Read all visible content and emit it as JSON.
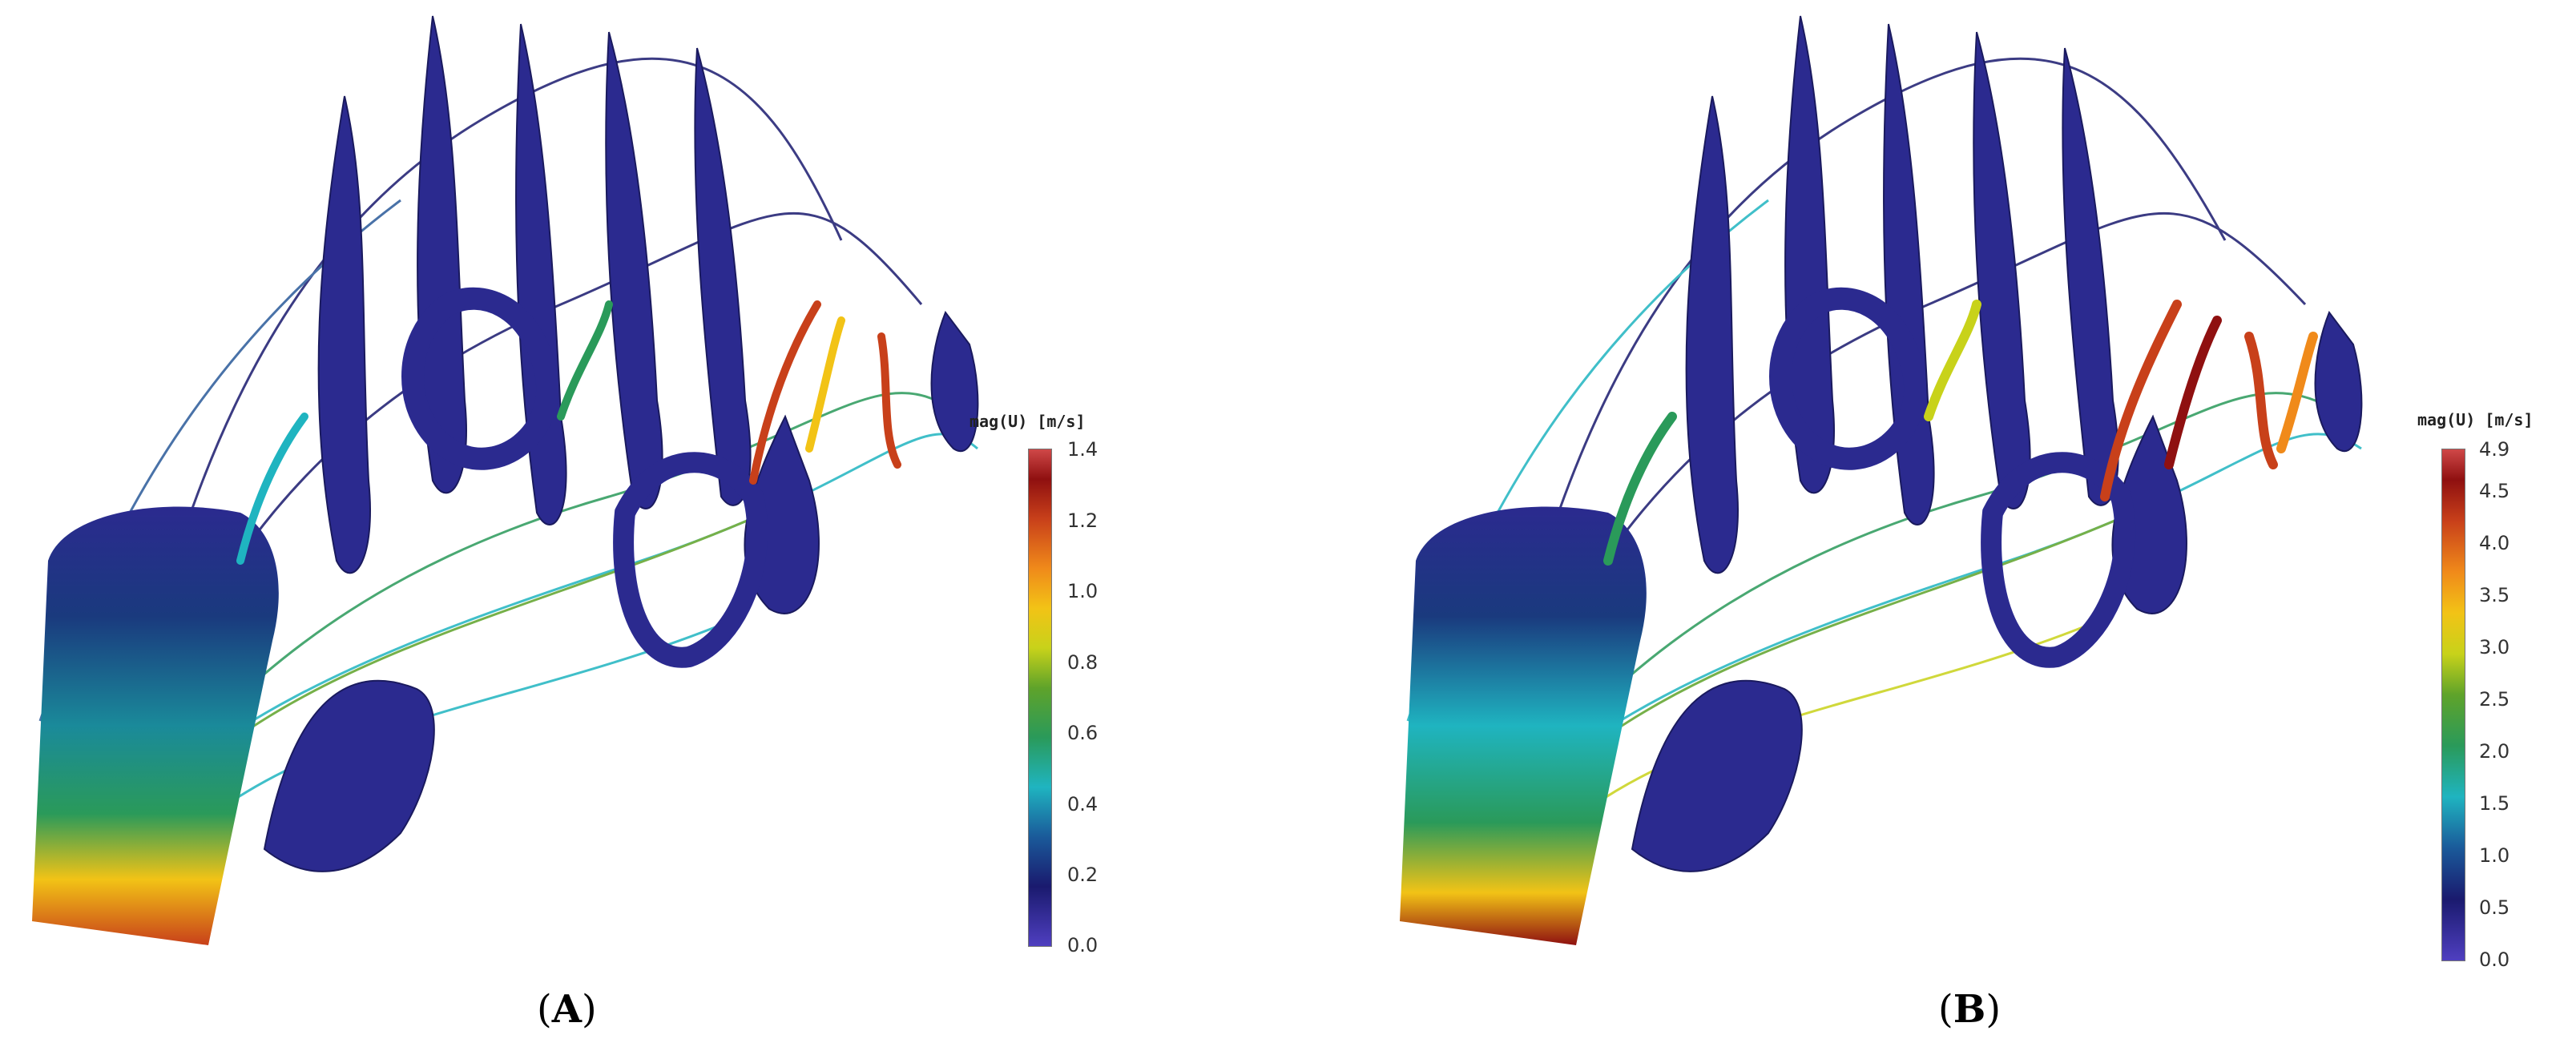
{
  "panels": [
    {
      "label_open": "(",
      "label_letter": "A",
      "label_close": ")",
      "colorbar": {
        "title": "mag(U) [m/s]",
        "ticks": [
          "1.4",
          "1.2",
          "1.0",
          "0.8",
          "0.6",
          "0.4",
          "0.2",
          "0.0"
        ]
      }
    },
    {
      "label_open": "(",
      "label_letter": "B",
      "label_close": ")",
      "colorbar": {
        "title": "mag(U) [m/s]",
        "ticks": [
          "4.9",
          "4.5",
          "4.0",
          "3.5",
          "3.0",
          "2.5",
          "2.0",
          "1.5",
          "1.0",
          "0.5",
          "0.0"
        ]
      }
    }
  ],
  "colors": {
    "wall": "#2b2a8f",
    "low": "#1a1a6e",
    "mid": "#1fb4c0",
    "high": "#c8401a"
  }
}
